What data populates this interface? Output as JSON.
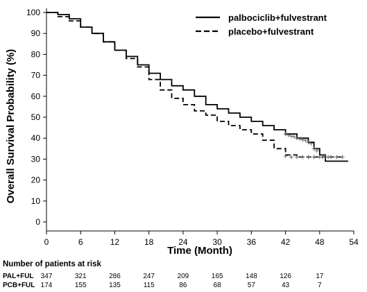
{
  "chart_data": {
    "type": "line",
    "subtype": "kaplan-meier",
    "title": "",
    "xlabel": "Time (Month)",
    "ylabel": "Overall Survival Probability (%)",
    "xlim": [
      0,
      54
    ],
    "ylim": [
      0,
      100
    ],
    "x_ticks": [
      "0",
      "6",
      "12",
      "18",
      "24",
      "30",
      "36",
      "42",
      "48",
      "54"
    ],
    "y_ticks": [
      "0",
      "10",
      "20",
      "30",
      "40",
      "50",
      "60",
      "70",
      "80",
      "90",
      "100"
    ],
    "grid": false,
    "legend": "top-right",
    "series": [
      {
        "name": "palbociclib+fulvestrant",
        "line_style": "solid",
        "x": [
          0,
          2,
          4,
          6,
          8,
          10,
          12,
          14,
          16,
          18,
          20,
          22,
          24,
          26,
          28,
          30,
          32,
          34,
          36,
          38,
          40,
          42,
          44,
          46,
          47,
          48,
          49,
          53
        ],
        "y": [
          100,
          99,
          97,
          93,
          90,
          86,
          82,
          79,
          75,
          71,
          68,
          65,
          63,
          60,
          56,
          54,
          52,
          50,
          48,
          46,
          44,
          42,
          40,
          38,
          35,
          32,
          29,
          29
        ],
        "censor_x": [
          42,
          42.5,
          43,
          43.5,
          44,
          44.5,
          45,
          45.5,
          46,
          46.5,
          47,
          47.5,
          48.5,
          49.5
        ],
        "censor_y": [
          42,
          41.5,
          41,
          40.7,
          40,
          39.7,
          39.2,
          39,
          38,
          37.5,
          35,
          34,
          31,
          31
        ]
      },
      {
        "name": "placebo+fulvestrant",
        "line_style": "dashed",
        "x": [
          0,
          2,
          4,
          6,
          8,
          10,
          12,
          14,
          16,
          18,
          20,
          22,
          24,
          26,
          28,
          30,
          32,
          34,
          36,
          38,
          40,
          42,
          44,
          46,
          48,
          52
        ],
        "y": [
          100,
          98,
          96,
          93,
          90,
          86,
          82,
          78,
          74,
          68,
          63,
          59,
          56,
          53,
          51,
          48,
          46,
          44,
          42,
          39,
          35,
          32,
          31,
          31,
          31,
          31
        ],
        "censor_x": [
          42,
          43,
          44,
          45,
          46,
          47,
          48,
          49,
          50,
          51,
          52
        ],
        "censor_y": [
          31.5,
          31,
          31,
          31,
          31,
          31,
          31,
          31,
          31,
          31,
          31
        ]
      }
    ],
    "risk_table": {
      "title": "Number of patients at risk",
      "times": [
        "0",
        "6",
        "12",
        "18",
        "24",
        "30",
        "36",
        "42",
        "48"
      ],
      "rows": [
        {
          "label": "PAL+FUL",
          "values": [
            "347",
            "321",
            "286",
            "247",
            "209",
            "165",
            "148",
            "126",
            "17"
          ]
        },
        {
          "label": "PCB+FUL",
          "values": [
            "174",
            "155",
            "135",
            "115",
            "86",
            "68",
            "57",
            "43",
            "7"
          ]
        }
      ]
    }
  }
}
